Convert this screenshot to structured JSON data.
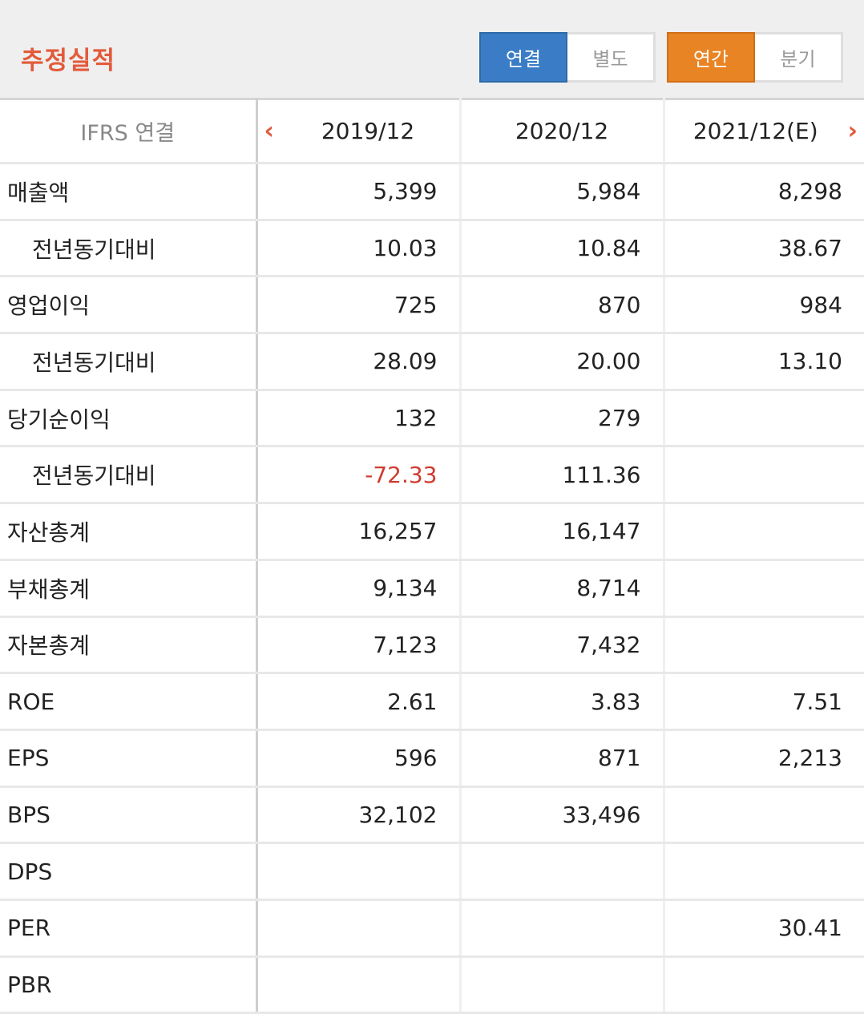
{
  "header": {
    "title": "추정실적",
    "consolidation_toggle": [
      {
        "label": "연결",
        "active": true
      },
      {
        "label": "별도",
        "active": false
      }
    ],
    "period_toggle": [
      {
        "label": "연간",
        "active": true
      },
      {
        "label": "분기",
        "active": false
      }
    ],
    "colors": {
      "title": "#e35a3a",
      "blue": "#3a7dc6",
      "orange": "#e98425",
      "negative": "#cf3b2f"
    }
  },
  "table": {
    "corner_label": "IFRS 연결",
    "prev_icon": "chevron-left-icon",
    "next_icon": "chevron-right-icon",
    "columns": [
      "2019/12",
      "2020/12",
      "2021/12(E)"
    ],
    "rows": [
      {
        "label": "매출액",
        "sub": false,
        "values": [
          "5,399",
          "5,984",
          "8,298"
        ]
      },
      {
        "label": "전년동기대비",
        "sub": true,
        "values": [
          "10.03",
          "10.84",
          "38.67"
        ]
      },
      {
        "label": "영업이익",
        "sub": false,
        "values": [
          "725",
          "870",
          "984"
        ]
      },
      {
        "label": "전년동기대비",
        "sub": true,
        "values": [
          "28.09",
          "20.00",
          "13.10"
        ]
      },
      {
        "label": "당기순이익",
        "sub": false,
        "values": [
          "132",
          "279",
          ""
        ]
      },
      {
        "label": "전년동기대비",
        "sub": true,
        "values": [
          "-72.33",
          "111.36",
          ""
        ]
      },
      {
        "label": "자산총계",
        "sub": false,
        "values": [
          "16,257",
          "16,147",
          ""
        ]
      },
      {
        "label": "부채총계",
        "sub": false,
        "values": [
          "9,134",
          "8,714",
          ""
        ]
      },
      {
        "label": "자본총계",
        "sub": false,
        "values": [
          "7,123",
          "7,432",
          ""
        ]
      },
      {
        "label": "ROE",
        "sub": false,
        "values": [
          "2.61",
          "3.83",
          "7.51"
        ]
      },
      {
        "label": "EPS",
        "sub": false,
        "values": [
          "596",
          "871",
          "2,213"
        ]
      },
      {
        "label": "BPS",
        "sub": false,
        "values": [
          "32,102",
          "33,496",
          ""
        ]
      },
      {
        "label": "DPS",
        "sub": false,
        "values": [
          "",
          "",
          ""
        ]
      },
      {
        "label": "PER",
        "sub": false,
        "values": [
          "",
          "",
          "30.41"
        ]
      },
      {
        "label": "PBR",
        "sub": false,
        "values": [
          "",
          "",
          ""
        ]
      }
    ]
  }
}
